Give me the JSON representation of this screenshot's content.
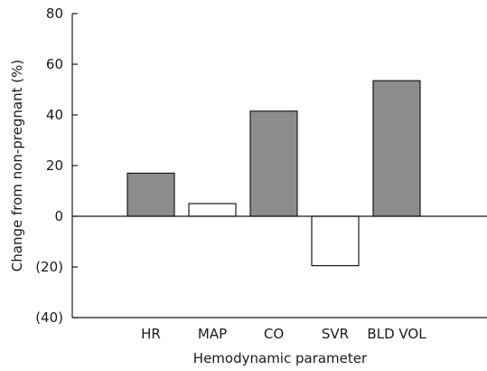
{
  "chart_data": {
    "type": "bar",
    "title": "",
    "xlabel": "Hemodynamic parameter",
    "ylabel": "Change from non-pregnant (%)",
    "ylim": [
      -40,
      80
    ],
    "yticks": [
      80,
      60,
      40,
      20,
      0,
      -20,
      -40
    ],
    "ytick_labels": [
      "80",
      "60",
      "40",
      "20",
      "0",
      "(20)",
      "(40)"
    ],
    "categories": [
      "HR",
      "MAP",
      "CO",
      "SVR",
      "BLD VOL"
    ],
    "values": [
      17,
      5,
      41.5,
      -19.5,
      53.5
    ],
    "bar_fills": [
      "#8c8c8c",
      "#ffffff",
      "#8c8c8c",
      "#ffffff",
      "#8c8c8c"
    ],
    "grid": false,
    "legend": "none"
  },
  "colors": {
    "axis": "#1a1a1a",
    "filled_bar": "#8c8c8c",
    "open_bar": "#ffffff",
    "bar_edge": "#1a1a1a"
  }
}
